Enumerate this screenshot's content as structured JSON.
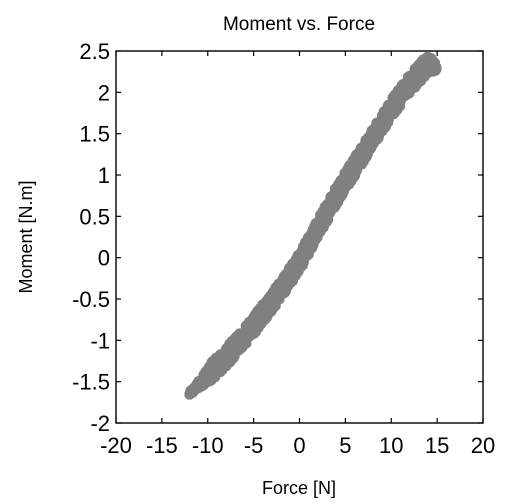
{
  "chart_data": {
    "type": "scatter",
    "title": "Moment vs. Force",
    "xlabel": "Force [N]",
    "ylabel": "Moment [N.m]",
    "xlim": [
      -20,
      20
    ],
    "ylim": [
      -2,
      2.5
    ],
    "xticks": [
      "-20",
      "-15",
      "-10",
      "-5",
      "0",
      "5",
      "10",
      "15",
      "20"
    ],
    "yticks": [
      "-2",
      "-1.5",
      "-1",
      "-0.5",
      "0",
      "0.5",
      "1",
      "1.5",
      "2",
      "2.5"
    ],
    "grid": false,
    "marker_color": "#808080",
    "series": [
      {
        "values_description_free": true,
        "centerline": [
          {
            "x": -12,
            "y": -1.65
          },
          {
            "x": -10,
            "y": -1.42
          },
          {
            "x": -8,
            "y": -1.2
          },
          {
            "x": -6,
            "y": -0.95
          },
          {
            "x": -4,
            "y": -0.68
          },
          {
            "x": -2,
            "y": -0.38
          },
          {
            "x": 0,
            "y": -0.05
          },
          {
            "x": 2,
            "y": 0.35
          },
          {
            "x": 4,
            "y": 0.75
          },
          {
            "x": 6,
            "y": 1.1
          },
          {
            "x": 8,
            "y": 1.45
          },
          {
            "x": 10,
            "y": 1.8
          },
          {
            "x": 12,
            "y": 2.1
          },
          {
            "x": 14,
            "y": 2.35
          },
          {
            "x": 15,
            "y": 2.3
          }
        ],
        "band_halfwidth_y": 0.12
      }
    ]
  }
}
